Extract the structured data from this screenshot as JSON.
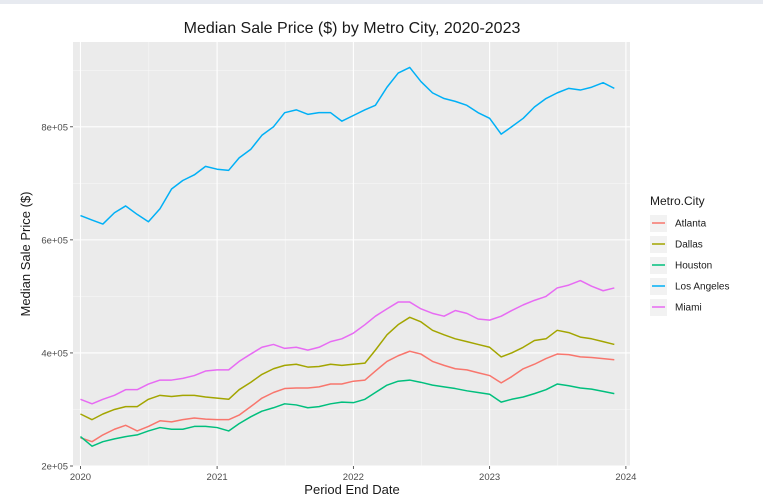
{
  "chart_data": {
    "type": "line",
    "title": "Median Sale Price ($) by Metro City, 2020-2023",
    "xlabel": "Period End Date",
    "ylabel": "Median Sale Price ($)",
    "xlim": [
      "2019-12-12",
      "2024-01-12"
    ],
    "ylim": [
      200000,
      950000
    ],
    "x_ticks": [
      {
        "date": "2020-01-01",
        "label": "2020"
      },
      {
        "date": "2021-01-01",
        "label": "2021"
      },
      {
        "date": "2022-01-01",
        "label": "2022"
      },
      {
        "date": "2023-01-01",
        "label": "2023"
      },
      {
        "date": "2024-01-01",
        "label": "2024"
      }
    ],
    "y_ticks": [
      {
        "value": 200000,
        "label": "2e+05"
      },
      {
        "value": 400000,
        "label": "4e+05"
      },
      {
        "value": 600000,
        "label": "6e+05"
      },
      {
        "value": 800000,
        "label": "8e+05"
      }
    ],
    "grid": true,
    "background": "#ebebeb",
    "legend": {
      "title": "Metro.City",
      "position": "right"
    },
    "x": [
      "2020-01-01",
      "2020-02-01",
      "2020-03-01",
      "2020-04-01",
      "2020-05-01",
      "2020-06-01",
      "2020-07-01",
      "2020-08-01",
      "2020-09-01",
      "2020-10-01",
      "2020-11-01",
      "2020-12-01",
      "2021-01-01",
      "2021-02-01",
      "2021-03-01",
      "2021-04-01",
      "2021-05-01",
      "2021-06-01",
      "2021-07-01",
      "2021-08-01",
      "2021-09-01",
      "2021-10-01",
      "2021-11-01",
      "2021-12-01",
      "2022-01-01",
      "2022-02-01",
      "2022-03-01",
      "2022-04-01",
      "2022-05-01",
      "2022-06-01",
      "2022-07-01",
      "2022-08-01",
      "2022-09-01",
      "2022-10-01",
      "2022-11-01",
      "2022-12-01",
      "2023-01-01",
      "2023-02-01",
      "2023-03-01",
      "2023-04-01",
      "2023-05-01",
      "2023-06-01",
      "2023-07-01",
      "2023-08-01",
      "2023-09-01",
      "2023-10-01",
      "2023-11-01",
      "2023-12-01"
    ],
    "series": [
      {
        "name": "Atlanta",
        "color": "#F8766D",
        "values": [
          250000,
          243000,
          255000,
          265000,
          272000,
          262000,
          270000,
          280000,
          278000,
          282000,
          285000,
          283000,
          282000,
          282000,
          290000,
          305000,
          320000,
          330000,
          337000,
          338000,
          338000,
          340000,
          345000,
          345000,
          350000,
          352000,
          368000,
          385000,
          395000,
          403000,
          398000,
          385000,
          378000,
          372000,
          370000,
          365000,
          360000,
          347000,
          358000,
          372000,
          380000,
          390000,
          398000,
          397000,
          393000,
          392000,
          390000,
          388000
        ]
      },
      {
        "name": "Dallas",
        "color": "#A3A500",
        "values": [
          292000,
          282000,
          292000,
          300000,
          305000,
          305000,
          318000,
          325000,
          323000,
          325000,
          325000,
          322000,
          320000,
          318000,
          335000,
          348000,
          362000,
          372000,
          378000,
          380000,
          375000,
          376000,
          380000,
          378000,
          380000,
          382000,
          405000,
          432000,
          450000,
          463000,
          455000,
          440000,
          432000,
          425000,
          420000,
          415000,
          410000,
          393000,
          400000,
          410000,
          422000,
          425000,
          440000,
          436000,
          428000,
          425000,
          420000,
          415000
        ]
      },
      {
        "name": "Houston",
        "color": "#00BF7D",
        "values": [
          252000,
          235000,
          243000,
          248000,
          252000,
          255000,
          262000,
          268000,
          265000,
          265000,
          270000,
          270000,
          268000,
          262000,
          275000,
          287000,
          297000,
          303000,
          310000,
          308000,
          303000,
          305000,
          310000,
          313000,
          312000,
          318000,
          330000,
          343000,
          350000,
          352000,
          348000,
          343000,
          340000,
          337000,
          333000,
          330000,
          327000,
          313000,
          318000,
          322000,
          328000,
          335000,
          345000,
          342000,
          338000,
          336000,
          332000,
          328000
        ]
      },
      {
        "name": "Los Angeles",
        "color": "#00B0F6",
        "values": [
          643000,
          635000,
          628000,
          648000,
          660000,
          645000,
          632000,
          655000,
          690000,
          705000,
          715000,
          730000,
          725000,
          723000,
          745000,
          760000,
          785000,
          800000,
          825000,
          830000,
          822000,
          825000,
          825000,
          810000,
          820000,
          830000,
          838000,
          870000,
          895000,
          905000,
          880000,
          860000,
          850000,
          845000,
          838000,
          825000,
          815000,
          787000,
          800000,
          815000,
          835000,
          850000,
          860000,
          868000,
          865000,
          870000,
          878000,
          868000
        ]
      },
      {
        "name": "Miami",
        "color": "#E76BF3",
        "values": [
          318000,
          310000,
          318000,
          325000,
          335000,
          335000,
          345000,
          352000,
          352000,
          355000,
          360000,
          368000,
          370000,
          370000,
          385000,
          398000,
          410000,
          415000,
          408000,
          410000,
          405000,
          410000,
          420000,
          425000,
          435000,
          450000,
          465000,
          478000,
          490000,
          490000,
          478000,
          470000,
          465000,
          475000,
          470000,
          460000,
          458000,
          465000,
          475000,
          485000,
          493000,
          500000,
          515000,
          520000,
          528000,
          518000,
          510000,
          515000
        ]
      }
    ]
  }
}
